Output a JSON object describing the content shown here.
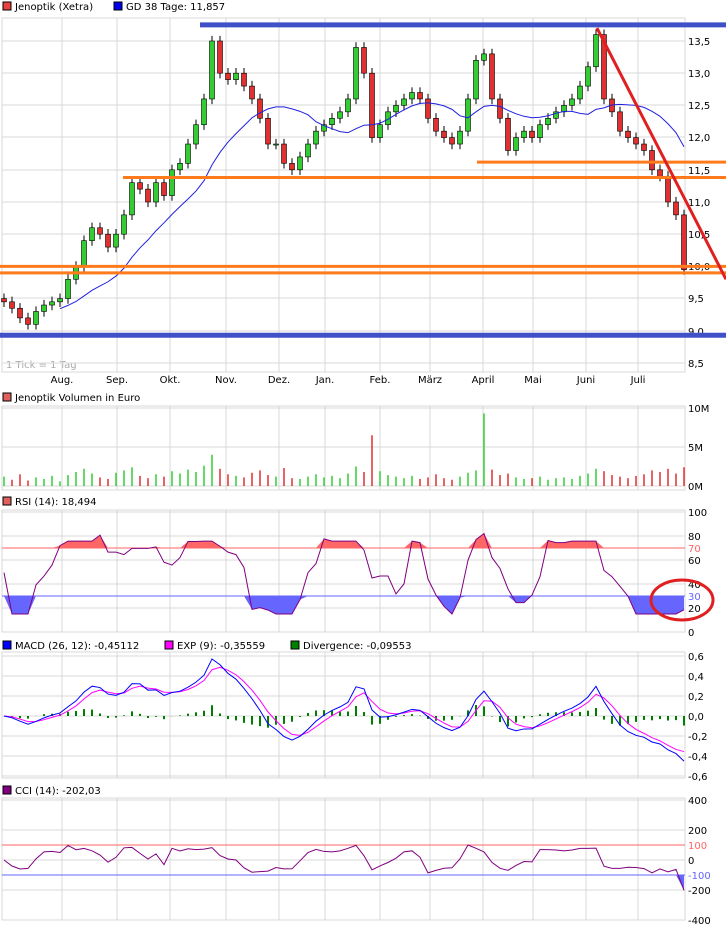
{
  "colors": {
    "up": "#33cc33",
    "down": "#e03030",
    "ma": "#2020e0",
    "trend_blue": "#4050c8",
    "trend_orange": "#ff7a1a",
    "trend_red": "#e02020",
    "rsi_line": "#800080",
    "macd": "#0000ff",
    "signal": "#ff00ff",
    "divergence": "#008000",
    "over": "#ff6666",
    "under": "#6666ff"
  },
  "chart_data": [
    {
      "type": "candlestick",
      "legend": [
        {
          "label": "Jenoptik (Xetra)",
          "color": "#e84040"
        },
        {
          "label": "GD 38 Tage: 11,857",
          "color": "#0000ee"
        }
      ],
      "note": "1 Tick = 1 Tag",
      "months": [
        "Aug.",
        "Sep.",
        "Okt.",
        "Nov.",
        "Dez.",
        "Jan.",
        "Feb.",
        "März",
        "April",
        "Mai",
        "Juni",
        "Juli"
      ],
      "yticks": [
        "13,5",
        "13,0",
        "12,5",
        "12,0",
        "11,5",
        "11,0",
        "10,5",
        "10,0",
        "9,5",
        "9,0",
        "8,5"
      ],
      "ylim": [
        8.5,
        13.5
      ],
      "closes": [
        9.45,
        9.35,
        9.2,
        9.1,
        9.3,
        9.4,
        9.45,
        9.5,
        9.8,
        10.0,
        10.4,
        10.6,
        10.5,
        10.3,
        10.5,
        10.8,
        11.3,
        11.2,
        11.0,
        11.3,
        11.1,
        11.5,
        11.6,
        11.9,
        12.2,
        12.6,
        13.5,
        13.0,
        12.9,
        13.0,
        12.8,
        12.6,
        12.3,
        11.9,
        11.9,
        11.6,
        11.5,
        11.7,
        11.9,
        12.1,
        12.2,
        12.3,
        12.4,
        12.6,
        13.4,
        13.0,
        12.0,
        12.2,
        12.4,
        12.5,
        12.6,
        12.7,
        12.6,
        12.3,
        12.1,
        12.0,
        11.9,
        12.1,
        12.6,
        13.2,
        13.3,
        12.6,
        12.3,
        11.8,
        12.0,
        12.1,
        12.0,
        12.2,
        12.3,
        12.4,
        12.5,
        12.6,
        12.8,
        13.1,
        13.6,
        12.6,
        12.4,
        12.1,
        12.0,
        11.9,
        11.8,
        11.5,
        11.4,
        11.0,
        10.8,
        9.95
      ],
      "trend_lines": {
        "blue_levels": [
          13.75,
          8.93
        ],
        "orange_levels": [
          11.38,
          11.62,
          10.0,
          9.9
        ],
        "red_line": {
          "from": 13.7,
          "to": 9.8
        }
      }
    },
    {
      "type": "bar",
      "legend": [
        {
          "label": "Jenoptik Volumen in Euro",
          "color": "#e06060"
        }
      ],
      "yticks": [
        "10M",
        "5M",
        "0M"
      ],
      "ylim": [
        0,
        10
      ],
      "values_millions": [
        1.2,
        0.8,
        1.5,
        0.7,
        1.1,
        0.9,
        1.3,
        0.6,
        1.4,
        1.8,
        2.2,
        1.6,
        1.1,
        0.9,
        1.7,
        2.0,
        2.4,
        1.3,
        1.0,
        1.5,
        1.2,
        1.9,
        1.6,
        2.1,
        1.8,
        2.6,
        4.0,
        2.2,
        1.5,
        1.3,
        1.1,
        1.7,
        2.0,
        1.4,
        1.2,
        2.3,
        1.0,
        0.9,
        1.2,
        1.5,
        1.1,
        1.3,
        1.0,
        1.6,
        2.5,
        1.8,
        6.5,
        1.9,
        1.4,
        1.2,
        1.0,
        1.3,
        0.9,
        1.1,
        1.5,
        1.0,
        0.8,
        1.2,
        1.7,
        2.0,
        9.3,
        2.1,
        1.4,
        1.6,
        1.1,
        0.9,
        1.0,
        1.2,
        0.8,
        1.0,
        1.1,
        0.9,
        1.3,
        1.6,
        2.2,
        1.9,
        1.4,
        1.2,
        1.0,
        1.3,
        1.5,
        2.0,
        1.8,
        2.2,
        1.6,
        2.4
      ]
    },
    {
      "type": "line",
      "legend": [
        {
          "label": "RSI (14): 18,494",
          "color": "#e06060"
        }
      ],
      "yticks": [
        "100",
        "80",
        "70",
        "60",
        "40",
        "30",
        "20",
        "0"
      ],
      "ylim": [
        0,
        100
      ],
      "thresholds": [
        70,
        30
      ]
    },
    {
      "type": "line",
      "legend": [
        {
          "label": "MACD (26, 12): -0,45112",
          "color": "#0000ff"
        },
        {
          "label": "EXP (9): -0,35559",
          "color": "#ff00ff"
        },
        {
          "label": "Divergence: -0,09553",
          "color": "#008000"
        }
      ],
      "yticks": [
        "0,6",
        "0,4",
        "0,2",
        "0,0",
        "-0,2",
        "-0,4",
        "-0,6"
      ],
      "ylim": [
        -0.6,
        0.6
      ]
    },
    {
      "type": "line",
      "legend": [
        {
          "label": "CCI (14): -202,03",
          "color": "#800080"
        }
      ],
      "yticks": [
        "400",
        "200",
        "100",
        "0",
        "-100",
        "-200",
        "-400"
      ],
      "ylim": [
        -400,
        400
      ],
      "thresholds": [
        100,
        -100
      ]
    }
  ]
}
